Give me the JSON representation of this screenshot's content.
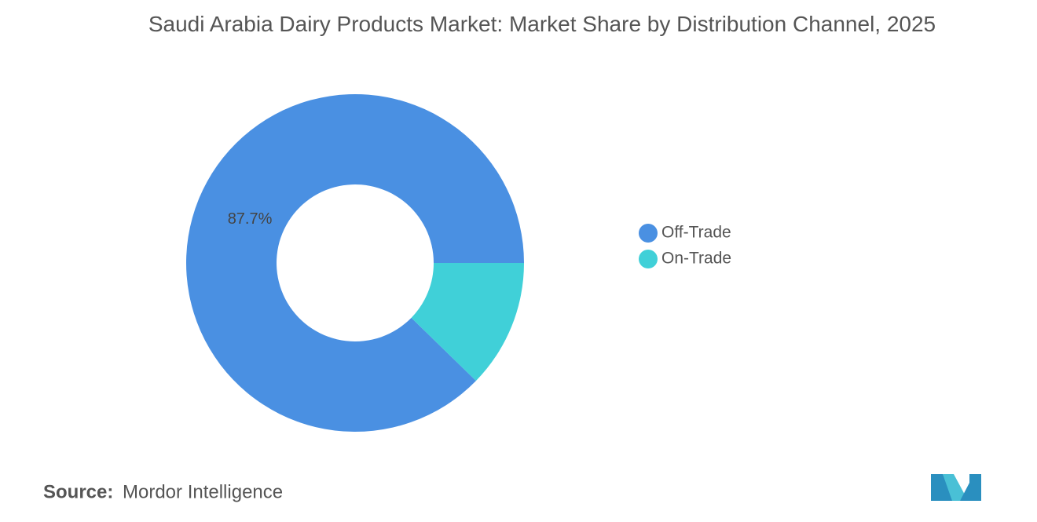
{
  "chart_data": {
    "type": "donut",
    "title": "Saudi Arabia Dairy Products Market: Market Share by Distribution Channel, 2025",
    "categories": [
      "Off-Trade",
      "On-Trade"
    ],
    "values": [
      87.7,
      12.3
    ],
    "value_labels": [
      "87.7%",
      null
    ],
    "colors": [
      "#4a90e2",
      "#40d0d8"
    ],
    "legend": "right",
    "source_label": "Source:",
    "source": "Mordor Intelligence"
  }
}
